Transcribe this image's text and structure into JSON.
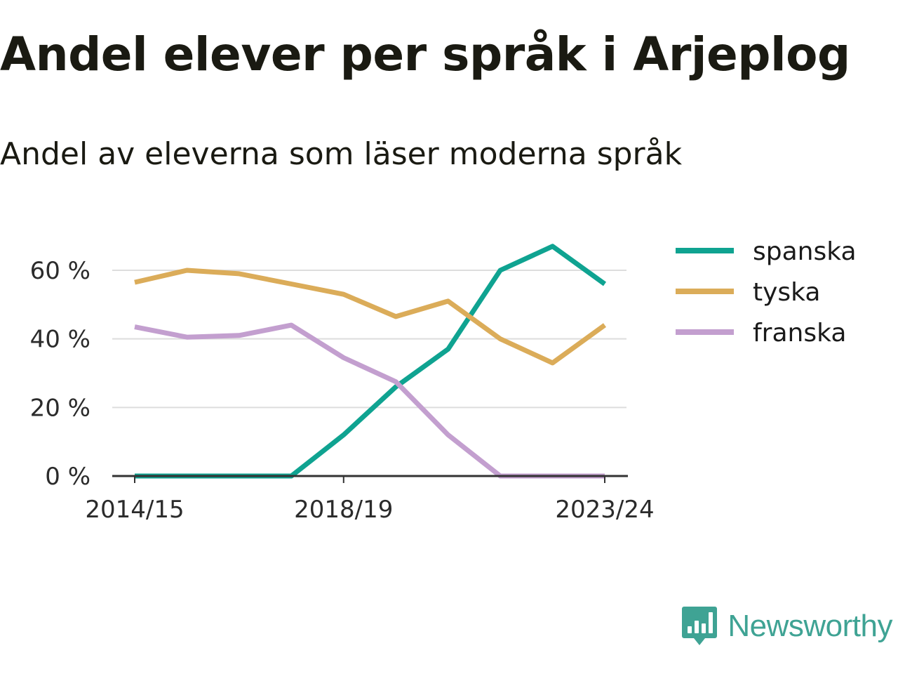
{
  "title": "Andel elever per språk i Arjeplog",
  "subtitle": "Andel av eleverna som läser moderna språk",
  "brand": {
    "name": "Newsworthy",
    "icon": "newsworthy-logo-icon"
  },
  "colors": {
    "spanska": "#0fa391",
    "tyska": "#dbac59",
    "franska": "#c39fcf",
    "grid": "#dddddd",
    "axis": "#333333",
    "brand": "#3fa394"
  },
  "chart_data": {
    "type": "line",
    "x": [
      "2014/15",
      "2015/16",
      "2016/17",
      "2017/18",
      "2018/19",
      "2019/20",
      "2020/21",
      "2021/22",
      "2022/23",
      "2023/24"
    ],
    "x_tick_labels": [
      "2014/15",
      "2018/19",
      "2023/24"
    ],
    "y_ticks": [
      0,
      20,
      40,
      60
    ],
    "y_tick_labels": [
      "0 %",
      "20 %",
      "40 %",
      "60 %"
    ],
    "ylim": [
      0,
      70
    ],
    "grid": true,
    "legend_position": "right",
    "series": [
      {
        "name": "spanska",
        "values": [
          0,
          0,
          0,
          0,
          12,
          26,
          37,
          60,
          67,
          56
        ]
      },
      {
        "name": "tyska",
        "values": [
          56.5,
          60,
          59,
          56,
          53,
          46.5,
          51,
          40,
          33,
          44
        ]
      },
      {
        "name": "franska",
        "values": [
          43.5,
          40.5,
          41,
          44,
          34.5,
          27.5,
          12,
          0,
          0,
          0
        ]
      }
    ]
  }
}
